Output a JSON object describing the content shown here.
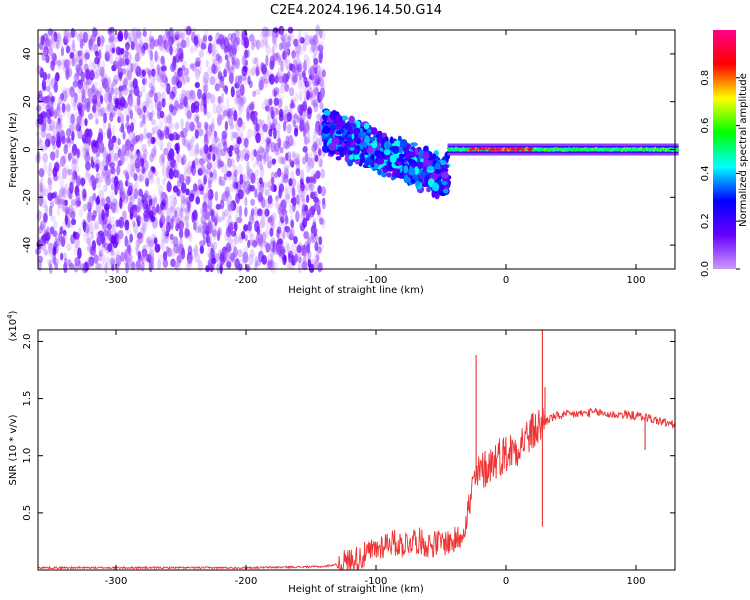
{
  "figure_title": "C2E4.2024.196.14.50.G14",
  "chart_data": [
    {
      "type": "heatmap",
      "xlabel": "Height of straight line (km)",
      "ylabel": "Frequency (Hz)",
      "xlim": [
        -360,
        130
      ],
      "ylim": [
        -50,
        50
      ],
      "xticks": [
        -300,
        -200,
        -100,
        0,
        100
      ],
      "yticks": [
        -40,
        -20,
        0,
        20,
        40
      ],
      "colorbar": {
        "label": "Normalized spectral amplitude",
        "range": [
          0.0,
          1.0
        ],
        "ticks": [
          "0.0",
          "0.2",
          "0.4",
          "0.6",
          "0.8"
        ],
        "colors": [
          "#cc99ff",
          "#6600ff",
          "#0000ff",
          "#00ffff",
          "#00ff00",
          "#ffff00",
          "#ff0000",
          "#ff0088"
        ]
      },
      "regions": [
        {
          "x_range": [
            -360,
            -140
          ],
          "freq_range": [
            -50,
            50
          ],
          "amplitude_range": [
            0.0,
            0.15
          ],
          "description": "broadband noise"
        },
        {
          "x_range": [
            -140,
            -45
          ],
          "center_freq_start": 8,
          "center_freq_end": -12,
          "bandwidth_hz": 10,
          "amplitude_range": [
            0.1,
            0.45
          ]
        },
        {
          "x_range": [
            -45,
            130
          ],
          "center_freq": 0,
          "bandwidth_hz": 5,
          "amplitude_range": [
            0.3,
            1.0
          ],
          "peak_amplitude_x_range": [
            -30,
            20
          ]
        }
      ]
    },
    {
      "type": "line",
      "xlabel": "Height of straight line (km)",
      "ylabel": "SNR (10 * v/v)",
      "y_multiplier": "(x10",
      "y_multiplier_exp": "4",
      "y_multiplier_close": ")",
      "xlim": [
        -360,
        130
      ],
      "ylim": [
        0,
        2.1
      ],
      "xticks": [
        -300,
        -200,
        -100,
        0,
        100
      ],
      "yticks": [
        "0.5",
        "1.0",
        "1.5",
        "2.0"
      ],
      "color": "#ee3333",
      "series": [
        {
          "x": [
            -360,
            -300,
            -200,
            -140,
            -125,
            -110,
            -100,
            -90,
            -80,
            -70,
            -60,
            -50,
            -40,
            -35,
            -30,
            -25,
            -20,
            -15,
            -10,
            -5,
            0,
            5,
            10,
            15,
            20,
            25,
            30,
            35,
            40,
            50,
            60,
            70,
            80,
            90,
            100,
            105,
            110,
            115,
            120,
            125,
            130
          ],
          "y": [
            0.02,
            0.02,
            0.02,
            0.03,
            0.06,
            0.12,
            0.18,
            0.25,
            0.22,
            0.27,
            0.22,
            0.24,
            0.25,
            0.3,
            0.45,
            0.75,
            0.85,
            0.9,
            0.95,
            1.0,
            1.02,
            1.05,
            1.1,
            1.15,
            1.2,
            1.25,
            1.3,
            1.33,
            1.35,
            1.36,
            1.37,
            1.38,
            1.36,
            1.36,
            1.35,
            1.34,
            1.33,
            1.31,
            1.3,
            1.28,
            1.27
          ]
        }
      ],
      "spikes": [
        {
          "x": -23,
          "y": 1.88
        },
        {
          "x": 28,
          "y": 2.12
        },
        {
          "x": 28,
          "y": 0.38
        },
        {
          "x": 30,
          "y": 1.6
        },
        {
          "x": 107,
          "y": 1.05
        }
      ]
    }
  ]
}
